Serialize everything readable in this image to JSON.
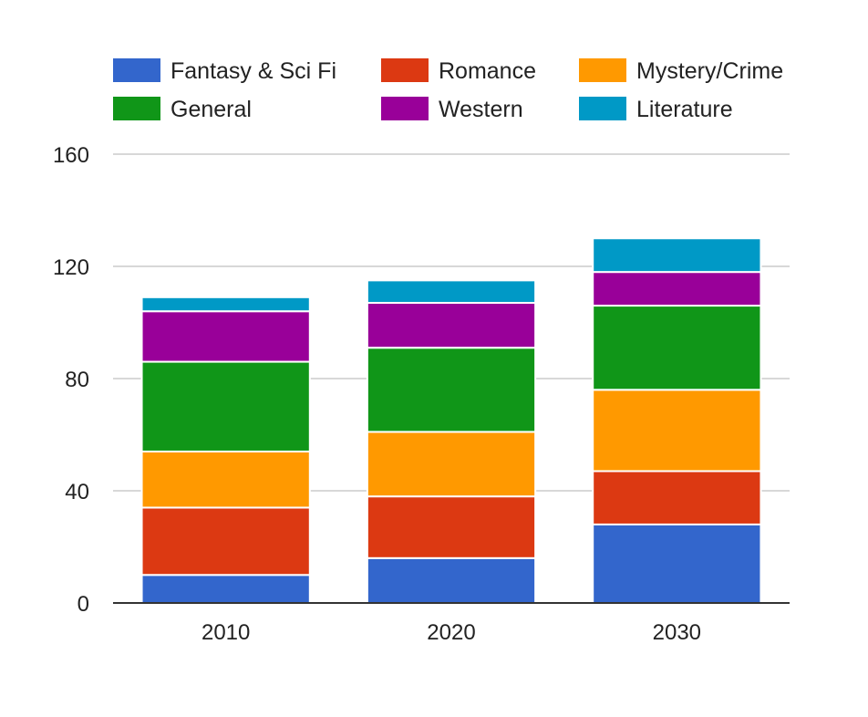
{
  "chart_data": {
    "type": "bar",
    "stacked": true,
    "title": "",
    "xlabel": "",
    "ylabel": "",
    "categories": [
      "2010",
      "2020",
      "2030"
    ],
    "ylim": [
      0,
      160
    ],
    "yticks": [
      "0",
      "40",
      "80",
      "120",
      "160"
    ],
    "grid": true,
    "legend_position": "top",
    "series": [
      {
        "name": "Fantasy & Sci Fi",
        "color": "#3366cc",
        "values": [
          10,
          16,
          28
        ]
      },
      {
        "name": "Romance",
        "color": "#dc3912",
        "values": [
          24,
          22,
          19
        ]
      },
      {
        "name": "Mystery/Crime",
        "color": "#ff9900",
        "values": [
          20,
          23,
          29
        ]
      },
      {
        "name": "General",
        "color": "#109618",
        "values": [
          32,
          30,
          30
        ]
      },
      {
        "name": "Western",
        "color": "#990099",
        "values": [
          18,
          16,
          12
        ]
      },
      {
        "name": "Literature",
        "color": "#0099c6",
        "values": [
          5,
          8,
          12
        ]
      }
    ]
  }
}
